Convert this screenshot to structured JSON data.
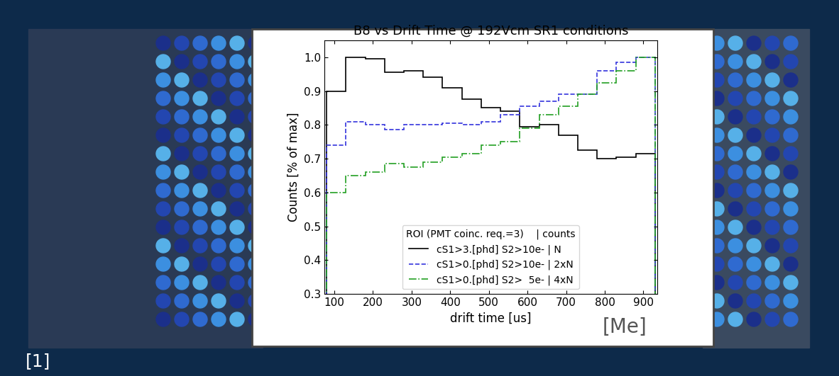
{
  "chart_data": {
    "type": "histogram",
    "title": "B8 vs Drift Time @ 192Vcm SR1 conditions",
    "x_label": "drift time [us]",
    "y_label": "Counts [% of max]",
    "bins": [
      80,
      130,
      180,
      230,
      280,
      330,
      380,
      430,
      480,
      530,
      580,
      630,
      680,
      730,
      780,
      830,
      880,
      930
    ],
    "series": [
      {
        "name": "cS1>3.[phd] S2>10e- | N",
        "color": "#000000",
        "line_style": "solid",
        "values": [
          0.9,
          1.0,
          0.995,
          0.955,
          0.96,
          0.94,
          0.91,
          0.875,
          0.85,
          0.84,
          0.795,
          0.8,
          0.77,
          0.725,
          0.7,
          0.705,
          0.715
        ]
      },
      {
        "name": "cS1>0.[phd] S2>10e- | 2xN",
        "color": "#3333dd",
        "line_style": "dashed",
        "values": [
          0.74,
          0.81,
          0.8,
          0.785,
          0.8,
          0.8,
          0.805,
          0.8,
          0.81,
          0.83,
          0.855,
          0.87,
          0.89,
          0.89,
          0.96,
          0.985,
          1.0
        ]
      },
      {
        "name": "cS1>0.[phd] S2>  5e- | 4xN",
        "color": "#22a022",
        "line_style": "dashdot",
        "values": [
          0.6,
          0.65,
          0.66,
          0.685,
          0.675,
          0.69,
          0.705,
          0.715,
          0.74,
          0.75,
          0.79,
          0.83,
          0.855,
          0.89,
          0.925,
          0.96,
          1.0
        ]
      }
    ],
    "legend_title": "ROI (PMT coinc. req.=3)    | counts",
    "legend": "lower center",
    "xlim": [
      75,
      935
    ],
    "xticks": [
      100,
      200,
      300,
      400,
      500,
      600,
      700,
      800,
      900
    ],
    "ylim": [
      0.3,
      1.05
    ],
    "yticks": [
      0.3,
      0.4,
      0.5,
      0.6,
      0.7,
      0.8,
      0.9,
      1.0
    ],
    "annotations": [
      "[Me]",
      "[1]"
    ]
  }
}
